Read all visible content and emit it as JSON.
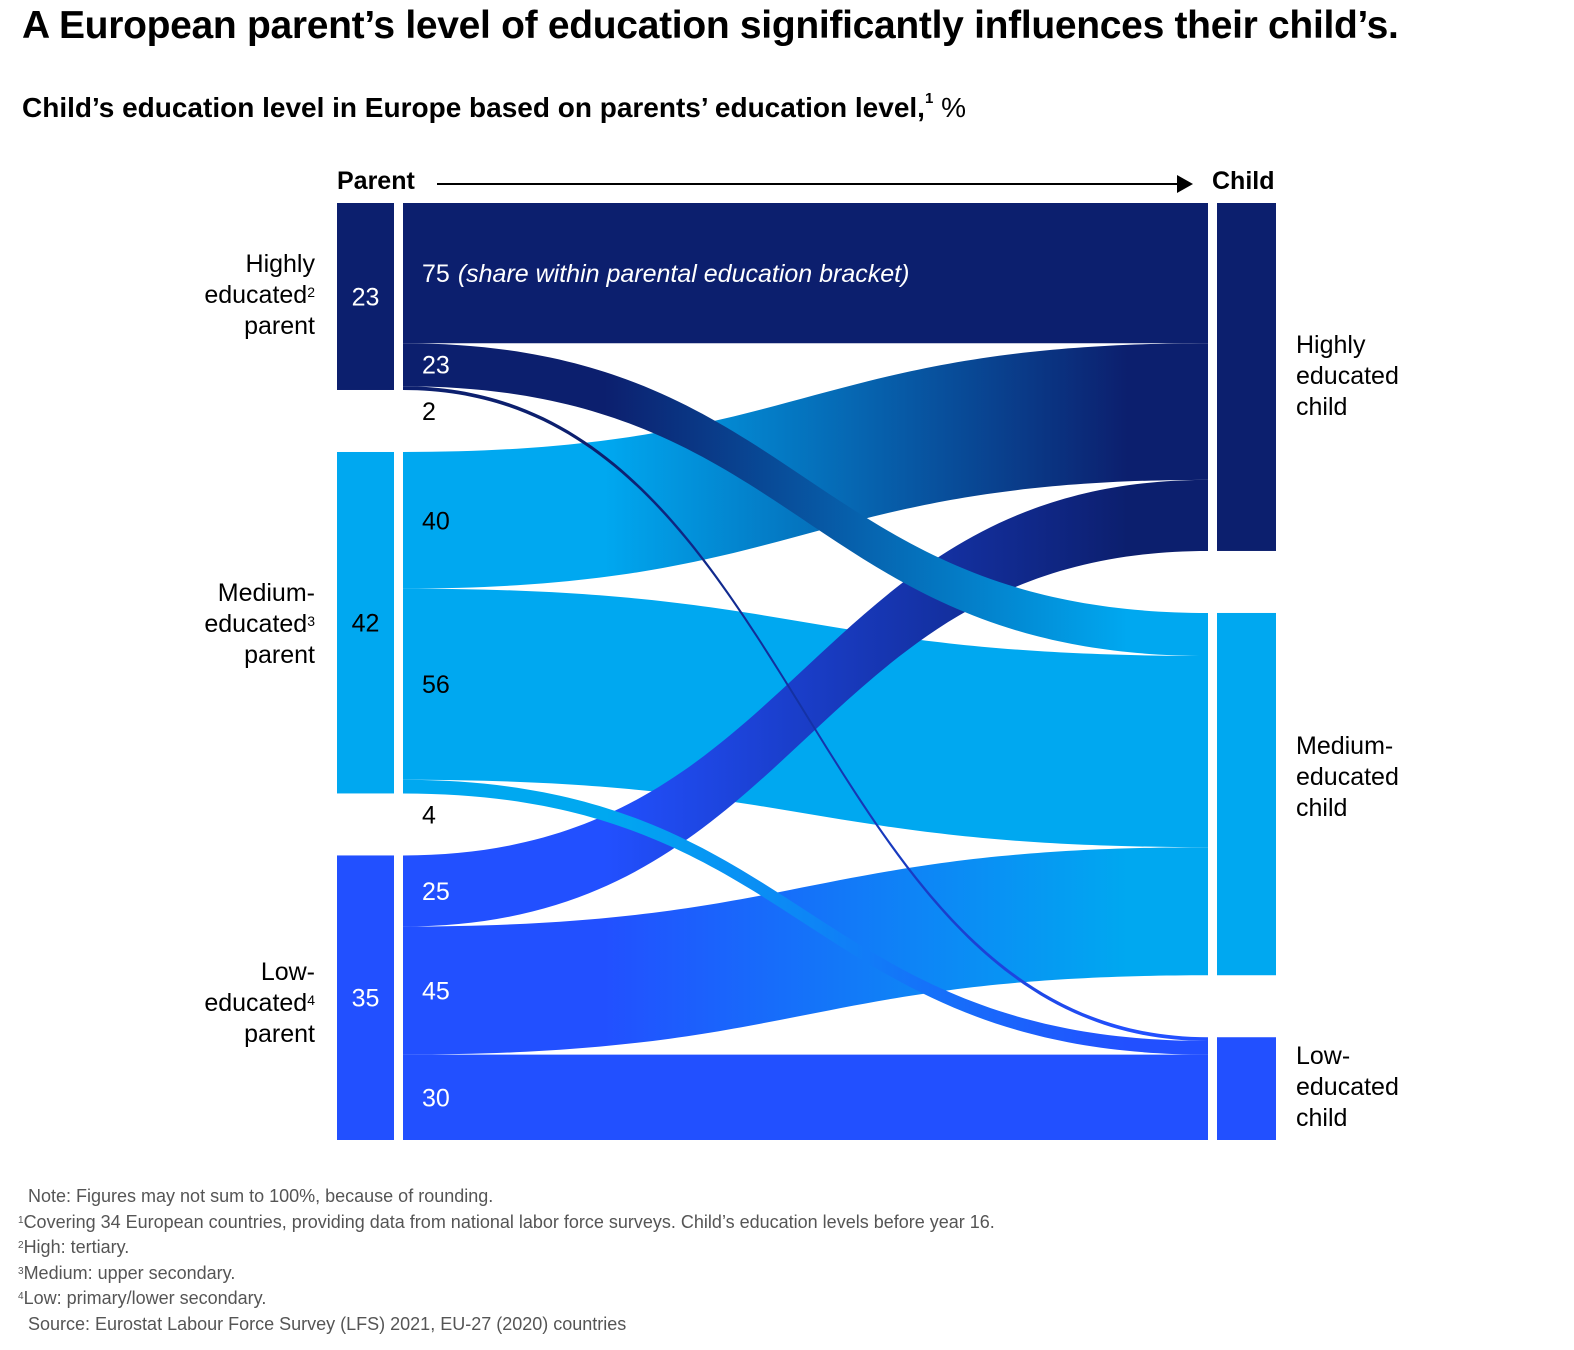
{
  "title": "A European parent’s level of education significantly influences their child’s.",
  "subtitle": {
    "text": "Child’s education level in Europe based on parents’ education level,",
    "footnote_mark": "1",
    "unit": " %"
  },
  "header": {
    "left": "Parent",
    "right": "Child"
  },
  "parent_labels": [
    {
      "line1": "Highly",
      "line2": "educated",
      "sup": "2",
      "line3": "parent"
    },
    {
      "line1": "Medium-",
      "line2": "educated",
      "sup": "3",
      "line3": "parent"
    },
    {
      "line1": "Low-",
      "line2": "educated",
      "sup": "4",
      "line3": "parent"
    }
  ],
  "child_labels": [
    {
      "line1": "Highly",
      "line2": "educated",
      "line3": "child"
    },
    {
      "line1": "Medium-",
      "line2": "educated",
      "line3": "child"
    },
    {
      "line1": "Low-",
      "line2": "educated",
      "line3": "child"
    }
  ],
  "flow_note": "(share within parental education bracket)",
  "colors": {
    "high": "#0c1f6e",
    "medium": "#00a8f0",
    "low": "#2250ff"
  },
  "notes": [
    "Note: Figures may not sum to 100%, because of rounding.",
    "Covering 34 European countries, providing data from national labor force surveys. Child’s education levels before year 16.",
    "High: tertiary.",
    "Medium: upper secondary.",
    "Low: primary/lower secondary.",
    "Source: Eurostat Labour Force Survey (LFS) 2021, EU-27 (2020) countries"
  ],
  "note_marks": [
    "",
    "1",
    "2",
    "3",
    "4",
    ""
  ],
  "chart_data": {
    "type": "sankey",
    "parents": [
      {
        "name": "Highly educated parent",
        "value": 23
      },
      {
        "name": "Medium-educated parent",
        "value": 42
      },
      {
        "name": "Low-educated parent",
        "value": 35
      }
    ],
    "children": [
      "Highly educated child",
      "Medium-educated child",
      "Low-educated child"
    ],
    "flows": [
      {
        "from": 0,
        "to": 0,
        "value": 75
      },
      {
        "from": 0,
        "to": 1,
        "value": 23
      },
      {
        "from": 0,
        "to": 2,
        "value": 2
      },
      {
        "from": 1,
        "to": 0,
        "value": 40
      },
      {
        "from": 1,
        "to": 1,
        "value": 56
      },
      {
        "from": 1,
        "to": 2,
        "value": 4
      },
      {
        "from": 2,
        "to": 0,
        "value": 25
      },
      {
        "from": 2,
        "to": 1,
        "value": 45
      },
      {
        "from": 2,
        "to": 2,
        "value": 30
      }
    ]
  }
}
